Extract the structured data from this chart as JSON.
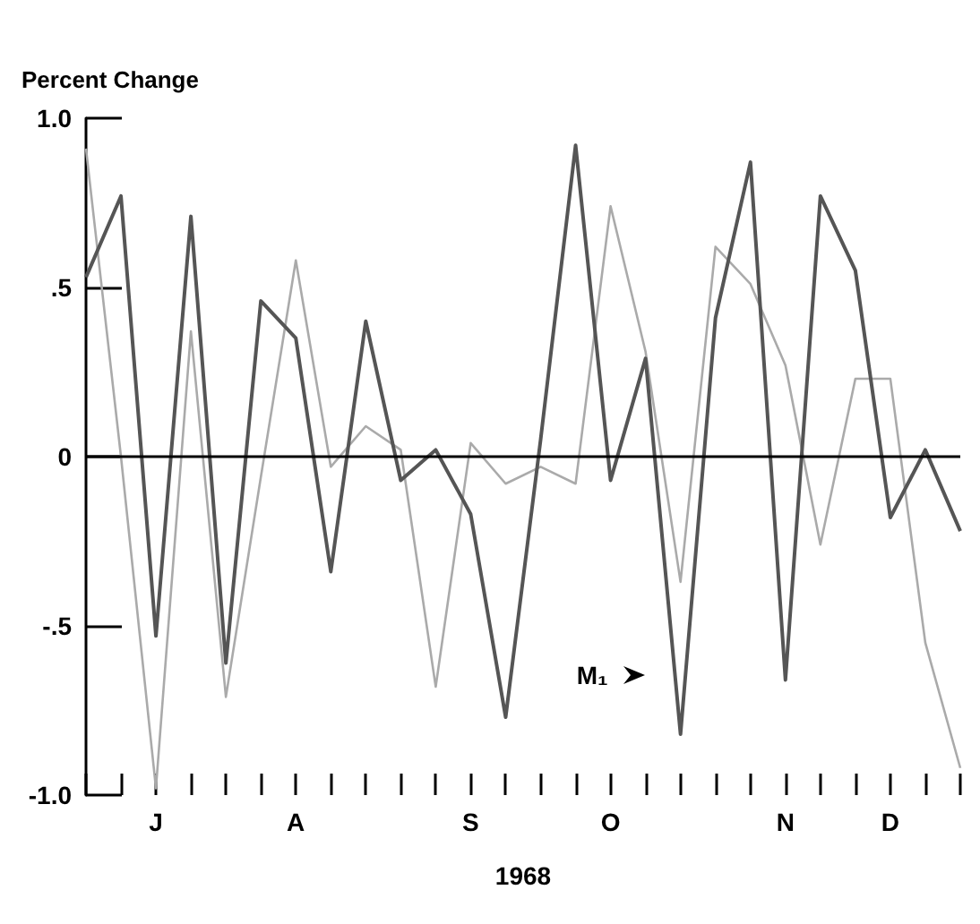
{
  "chart_data": {
    "type": "line",
    "ylabel": "Percent Change",
    "xlabel": "1968",
    "categories": [
      null,
      null,
      "J",
      null,
      null,
      null,
      "A",
      null,
      null,
      null,
      null,
      "S",
      null,
      null,
      null,
      "O",
      null,
      null,
      null,
      null,
      "N",
      null,
      null,
      "D",
      null,
      null
    ],
    "series": [
      {
        "color": "#aaaaaa",
        "values": [
          0.91,
          0.0,
          -0.98,
          0.37,
          -0.71,
          -0.06,
          0.58,
          -0.03,
          0.09,
          0.02,
          -0.68,
          0.04,
          -0.08,
          -0.03,
          -0.08,
          0.74,
          0.31,
          -0.37,
          0.62,
          0.51,
          0.27,
          -0.26,
          0.23,
          0.23,
          -0.55,
          -0.92
        ]
      },
      {
        "name": "M₁",
        "color": "#555555",
        "values": [
          0.53,
          0.77,
          -0.53,
          0.71,
          -0.61,
          0.46,
          0.35,
          -0.34,
          0.4,
          -0.07,
          0.02,
          -0.17,
          -0.77,
          0.05,
          0.92,
          -0.07,
          0.29,
          -0.82,
          0.41,
          0.87,
          -0.66,
          0.77,
          0.55,
          -0.18,
          0.02,
          -0.22
        ]
      }
    ],
    "ylim": [
      -1,
      1
    ],
    "yticks": [
      {
        "value": -1,
        "label": "-1.0"
      },
      {
        "value": -0.5,
        "label": "-.5"
      },
      0,
      {
        "value": 0.5,
        "label": ".5"
      },
      {
        "value": 1,
        "label": "1.0"
      }
    ],
    "ref_lines": [
      {
        "axis": "y",
        "value": 0,
        "color": "#000000"
      }
    ],
    "grid": false,
    "legend": false,
    "marker": "none",
    "line_style": "solid"
  }
}
